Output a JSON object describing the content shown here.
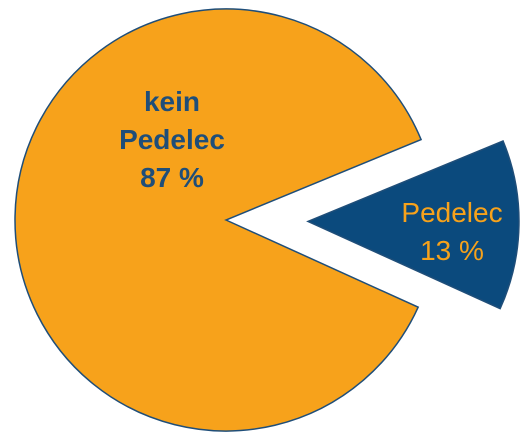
{
  "chart_data": {
    "type": "pie",
    "categories": [
      "kein Pedelec",
      "Pedelec"
    ],
    "values": [
      87,
      13
    ],
    "value_labels": [
      "87 %",
      "13 %"
    ],
    "colors": [
      "#f7a21b",
      "#0b4a7d"
    ],
    "label_colors": [
      "#1f4e79",
      "#f7a21b"
    ],
    "explode": [
      false,
      true
    ]
  }
}
